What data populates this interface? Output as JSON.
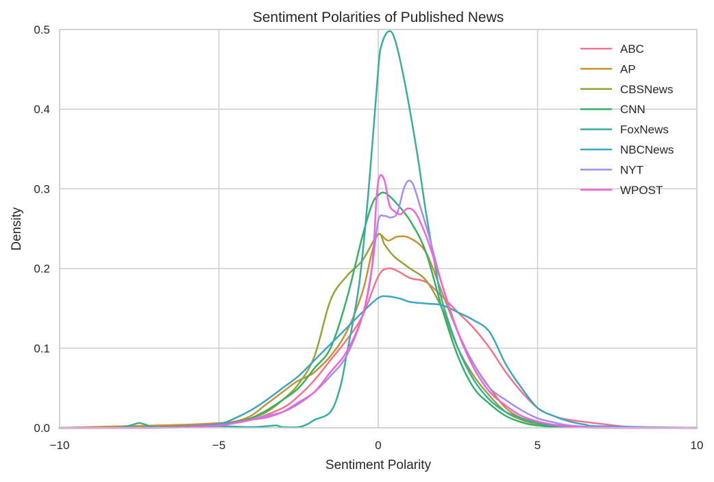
{
  "chart_data": {
    "type": "line",
    "title": "Sentiment Polarities of Published News",
    "xlabel": "Sentiment Polarity",
    "ylabel": "Density",
    "xlim": [
      -10,
      10
    ],
    "ylim": [
      0,
      0.5
    ],
    "xticks": [
      -10,
      -5,
      0,
      5,
      10
    ],
    "xtick_labels": [
      "−10",
      "−5",
      "0",
      "5",
      "10"
    ],
    "yticks": [
      0,
      0.1,
      0.2,
      0.3,
      0.4,
      0.5
    ],
    "ytick_labels": [
      "0.0",
      "0.1",
      "0.2",
      "0.3",
      "0.4",
      "0.5"
    ],
    "grid": true,
    "legend_position": "top-right",
    "series": [
      {
        "name": "ABC",
        "color": "#f77189",
        "points": [
          [
            -10,
            0
          ],
          [
            -8,
            0.001
          ],
          [
            -6,
            0.002
          ],
          [
            -5,
            0.004
          ],
          [
            -4,
            0.01
          ],
          [
            -3,
            0.025
          ],
          [
            -2.5,
            0.04
          ],
          [
            -2,
            0.06
          ],
          [
            -1.5,
            0.085
          ],
          [
            -1,
            0.11
          ],
          [
            -0.5,
            0.14
          ],
          [
            0,
            0.19
          ],
          [
            0.3,
            0.2
          ],
          [
            0.6,
            0.197
          ],
          [
            1,
            0.188
          ],
          [
            1.5,
            0.183
          ],
          [
            2,
            0.165
          ],
          [
            2.5,
            0.145
          ],
          [
            3,
            0.125
          ],
          [
            3.5,
            0.1
          ],
          [
            4,
            0.07
          ],
          [
            4.5,
            0.045
          ],
          [
            5,
            0.025
          ],
          [
            5.5,
            0.015
          ],
          [
            6,
            0.01
          ],
          [
            7,
            0.005
          ],
          [
            8,
            0.001
          ],
          [
            10,
            0
          ]
        ]
      },
      {
        "name": "AP",
        "color": "#ce8f31",
        "points": [
          [
            -10,
            0
          ],
          [
            -8,
            0.002
          ],
          [
            -6,
            0.004
          ],
          [
            -5,
            0.006
          ],
          [
            -4.5,
            0.008
          ],
          [
            -4,
            0.015
          ],
          [
            -3.5,
            0.03
          ],
          [
            -3,
            0.045
          ],
          [
            -2.6,
            0.057
          ],
          [
            -2.2,
            0.065
          ],
          [
            -2,
            0.07
          ],
          [
            -1.5,
            0.09
          ],
          [
            -1,
            0.12
          ],
          [
            -0.5,
            0.17
          ],
          [
            -0.2,
            0.22
          ],
          [
            0,
            0.243
          ],
          [
            0.3,
            0.235
          ],
          [
            0.6,
            0.24
          ],
          [
            1,
            0.238
          ],
          [
            1.5,
            0.22
          ],
          [
            2,
            0.17
          ],
          [
            2.5,
            0.12
          ],
          [
            3,
            0.08
          ],
          [
            3.5,
            0.05
          ],
          [
            4,
            0.025
          ],
          [
            4.5,
            0.012
          ],
          [
            5,
            0.006
          ],
          [
            6,
            0.002
          ],
          [
            7,
            0
          ],
          [
            10,
            0
          ]
        ]
      },
      {
        "name": "CBSNews",
        "color": "#96a331",
        "points": [
          [
            -10,
            0
          ],
          [
            -8,
            0
          ],
          [
            -6,
            0.002
          ],
          [
            -5,
            0.004
          ],
          [
            -4.5,
            0.007
          ],
          [
            -4,
            0.012
          ],
          [
            -3.5,
            0.02
          ],
          [
            -3,
            0.035
          ],
          [
            -2.5,
            0.055
          ],
          [
            -2,
            0.09
          ],
          [
            -1.5,
            0.16
          ],
          [
            -1,
            0.19
          ],
          [
            -0.5,
            0.21
          ],
          [
            0,
            0.243
          ],
          [
            0.2,
            0.23
          ],
          [
            0.5,
            0.215
          ],
          [
            1,
            0.2
          ],
          [
            1.5,
            0.185
          ],
          [
            2,
            0.15
          ],
          [
            2.5,
            0.1
          ],
          [
            3,
            0.065
          ],
          [
            3.5,
            0.04
          ],
          [
            4,
            0.02
          ],
          [
            4.5,
            0.01
          ],
          [
            5,
            0.005
          ],
          [
            6,
            0.001
          ],
          [
            10,
            0
          ]
        ]
      },
      {
        "name": "CNN",
        "color": "#32b165",
        "points": [
          [
            -10,
            0
          ],
          [
            -8,
            0
          ],
          [
            -6,
            0.002
          ],
          [
            -5,
            0.004
          ],
          [
            -4.5,
            0.007
          ],
          [
            -4,
            0.012
          ],
          [
            -3.5,
            0.022
          ],
          [
            -3,
            0.035
          ],
          [
            -2.5,
            0.05
          ],
          [
            -2,
            0.075
          ],
          [
            -1.5,
            0.1
          ],
          [
            -1,
            0.16
          ],
          [
            -0.5,
            0.24
          ],
          [
            -0.2,
            0.28
          ],
          [
            0,
            0.292
          ],
          [
            0.2,
            0.295
          ],
          [
            0.5,
            0.285
          ],
          [
            1,
            0.26
          ],
          [
            1.5,
            0.22
          ],
          [
            2,
            0.15
          ],
          [
            2.5,
            0.09
          ],
          [
            3,
            0.05
          ],
          [
            3.5,
            0.03
          ],
          [
            4,
            0.015
          ],
          [
            4.5,
            0.007
          ],
          [
            5,
            0.003
          ],
          [
            6,
            0.001
          ],
          [
            10,
            0
          ]
        ]
      },
      {
        "name": "FoxNews",
        "color": "#35ae9d",
        "points": [
          [
            -10,
            0
          ],
          [
            -8.5,
            0
          ],
          [
            -8,
            0.001
          ],
          [
            -7.7,
            0.004
          ],
          [
            -7.5,
            0.006
          ],
          [
            -7.3,
            0.004
          ],
          [
            -7,
            0.001
          ],
          [
            -6,
            0.001
          ],
          [
            -5,
            0.002
          ],
          [
            -4,
            0.001
          ],
          [
            -3.5,
            0.002
          ],
          [
            -3.2,
            0.003
          ],
          [
            -3,
            0.001
          ],
          [
            -2.5,
            0.001
          ],
          [
            -2.2,
            0.005
          ],
          [
            -2,
            0.01
          ],
          [
            -1.5,
            0.02
          ],
          [
            -1.2,
            0.05
          ],
          [
            -1,
            0.09
          ],
          [
            -0.6,
            0.18
          ],
          [
            -0.3,
            0.3
          ],
          [
            0,
            0.45
          ],
          [
            0.1,
            0.48
          ],
          [
            0.3,
            0.497
          ],
          [
            0.5,
            0.49
          ],
          [
            0.8,
            0.44
          ],
          [
            1.2,
            0.35
          ],
          [
            1.5,
            0.27
          ],
          [
            1.8,
            0.2
          ],
          [
            2,
            0.16
          ],
          [
            2.5,
            0.1
          ],
          [
            3,
            0.06
          ],
          [
            3.5,
            0.035
          ],
          [
            4,
            0.02
          ],
          [
            4.5,
            0.012
          ],
          [
            5,
            0.006
          ],
          [
            5.5,
            0.003
          ],
          [
            6,
            0.001
          ],
          [
            10,
            0
          ]
        ]
      },
      {
        "name": "NBCNews",
        "color": "#39a6c6",
        "points": [
          [
            -10,
            0
          ],
          [
            -7,
            0
          ],
          [
            -6,
            0.002
          ],
          [
            -5,
            0.005
          ],
          [
            -4.5,
            0.012
          ],
          [
            -4,
            0.022
          ],
          [
            -3.5,
            0.035
          ],
          [
            -3,
            0.05
          ],
          [
            -2.5,
            0.065
          ],
          [
            -2,
            0.085
          ],
          [
            -1.5,
            0.105
          ],
          [
            -1,
            0.125
          ],
          [
            -0.5,
            0.145
          ],
          [
            0,
            0.163
          ],
          [
            0.3,
            0.165
          ],
          [
            0.7,
            0.162
          ],
          [
            1,
            0.158
          ],
          [
            1.5,
            0.156
          ],
          [
            2,
            0.154
          ],
          [
            2.5,
            0.145
          ],
          [
            3,
            0.135
          ],
          [
            3.5,
            0.12
          ],
          [
            4,
            0.08
          ],
          [
            4.5,
            0.05
          ],
          [
            5,
            0.025
          ],
          [
            5.5,
            0.015
          ],
          [
            6,
            0.008
          ],
          [
            6.5,
            0.004
          ],
          [
            7,
            0.002
          ],
          [
            10,
            0
          ]
        ]
      },
      {
        "name": "NYT",
        "color": "#a48cf4",
        "points": [
          [
            -10,
            0
          ],
          [
            -7,
            0
          ],
          [
            -6,
            0.001
          ],
          [
            -5,
            0.003
          ],
          [
            -4.5,
            0.006
          ],
          [
            -4,
            0.01
          ],
          [
            -3.5,
            0.015
          ],
          [
            -3,
            0.02
          ],
          [
            -2.5,
            0.03
          ],
          [
            -2,
            0.045
          ],
          [
            -1.5,
            0.065
          ],
          [
            -1,
            0.09
          ],
          [
            -0.5,
            0.14
          ],
          [
            -0.2,
            0.2
          ],
          [
            0,
            0.26
          ],
          [
            0.2,
            0.266
          ],
          [
            0.4,
            0.264
          ],
          [
            0.6,
            0.27
          ],
          [
            0.8,
            0.3
          ],
          [
            0.95,
            0.31
          ],
          [
            1.1,
            0.305
          ],
          [
            1.3,
            0.28
          ],
          [
            1.6,
            0.24
          ],
          [
            2,
            0.18
          ],
          [
            2.5,
            0.12
          ],
          [
            3,
            0.08
          ],
          [
            3.5,
            0.05
          ],
          [
            4,
            0.035
          ],
          [
            4.5,
            0.022
          ],
          [
            5,
            0.012
          ],
          [
            5.5,
            0.007
          ],
          [
            6,
            0.003
          ],
          [
            7,
            0.001
          ],
          [
            10,
            0
          ]
        ]
      },
      {
        "name": "WPOST",
        "color": "#f461dd",
        "points": [
          [
            -10,
            0
          ],
          [
            -7,
            0
          ],
          [
            -6,
            0.001
          ],
          [
            -5,
            0.003
          ],
          [
            -4.5,
            0.006
          ],
          [
            -4,
            0.01
          ],
          [
            -3.5,
            0.013
          ],
          [
            -3,
            0.02
          ],
          [
            -2.5,
            0.032
          ],
          [
            -2,
            0.045
          ],
          [
            -1.5,
            0.07
          ],
          [
            -1,
            0.095
          ],
          [
            -0.5,
            0.14
          ],
          [
            -0.2,
            0.2
          ],
          [
            -0.05,
            0.29
          ],
          [
            0.05,
            0.316
          ],
          [
            0.2,
            0.31
          ],
          [
            0.35,
            0.28
          ],
          [
            0.5,
            0.272
          ],
          [
            0.7,
            0.268
          ],
          [
            0.9,
            0.275
          ],
          [
            1.1,
            0.273
          ],
          [
            1.3,
            0.26
          ],
          [
            1.6,
            0.23
          ],
          [
            2,
            0.18
          ],
          [
            2.5,
            0.12
          ],
          [
            3,
            0.075
          ],
          [
            3.5,
            0.045
          ],
          [
            4,
            0.028
          ],
          [
            4.5,
            0.015
          ],
          [
            5,
            0.008
          ],
          [
            5.5,
            0.004
          ],
          [
            6,
            0.002
          ],
          [
            7,
            0
          ],
          [
            10,
            0
          ]
        ]
      }
    ]
  }
}
